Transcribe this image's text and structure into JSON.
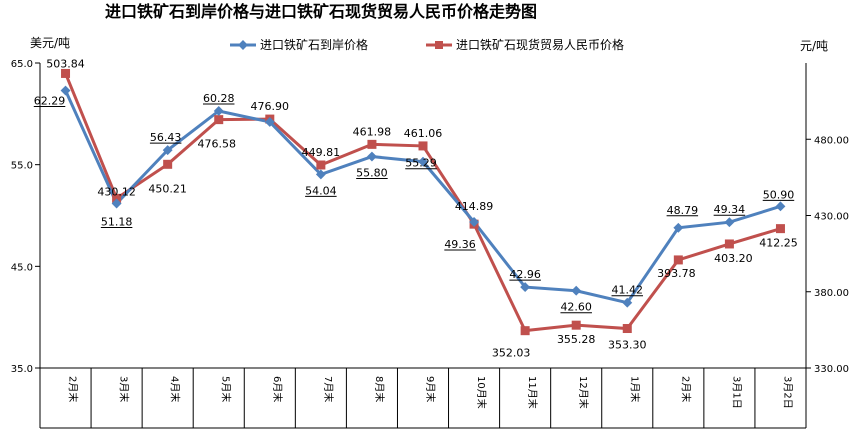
{
  "chart_data": {
    "type": "line",
    "title": "进口铁矿石到岸价格与进口铁矿石现货贸易人民币价格走势图",
    "y_left_unit": "美元/吨",
    "y_right_unit": "元/吨",
    "categories": [
      "2月末",
      "3月末",
      "4月末",
      "5月末",
      "6月末",
      "7月末",
      "8月末",
      "9月末",
      "10月末",
      "11月末",
      "12月末",
      "1月末",
      "2月末",
      "3月1日",
      "3月2日"
    ],
    "y_left": {
      "min": 35,
      "max": 65,
      "ticks": [
        "35.0",
        "45.0",
        "55.0",
        "65.0"
      ]
    },
    "y_right": {
      "min": 330,
      "max": 510,
      "ticks": [
        "330.00",
        "380.00",
        "430.00",
        "480.00"
      ]
    },
    "grid": false,
    "legend_position": "top",
    "series": [
      {
        "name": "进口铁矿石到岸价格",
        "axis": "left",
        "color": "#4F81BD",
        "marker": "diamond",
        "values": [
          62.29,
          51.18,
          56.43,
          60.28,
          59.2,
          54.04,
          55.8,
          55.29,
          49.36,
          42.96,
          42.6,
          41.42,
          48.79,
          49.34,
          50.9
        ],
        "labels": [
          "62.29",
          "51.18",
          "56.43",
          "60.28",
          "",
          "54.04",
          "55.80",
          "55.29",
          "49.36",
          "42.96",
          "42.60",
          "41.42",
          "48.79",
          "49.34",
          "50.90"
        ]
      },
      {
        "name": "进口铁矿石现货贸易人民币价格",
        "axis": "right",
        "color": "#C0504D",
        "marker": "square",
        "values": [
          503.84,
          430.12,
          450.21,
          476.58,
          476.9,
          449.81,
          461.98,
          461.06,
          414.89,
          352.03,
          355.28,
          353.3,
          393.78,
          403.2,
          412.25
        ],
        "labels": [
          "503.84",
          "430.12",
          "450.21",
          "476.58",
          "476.90",
          "449.81",
          "461.98",
          "461.06",
          "414.89",
          "352.03",
          "355.28",
          "353.30",
          "393.78",
          "403.20",
          "412.25"
        ]
      }
    ]
  }
}
